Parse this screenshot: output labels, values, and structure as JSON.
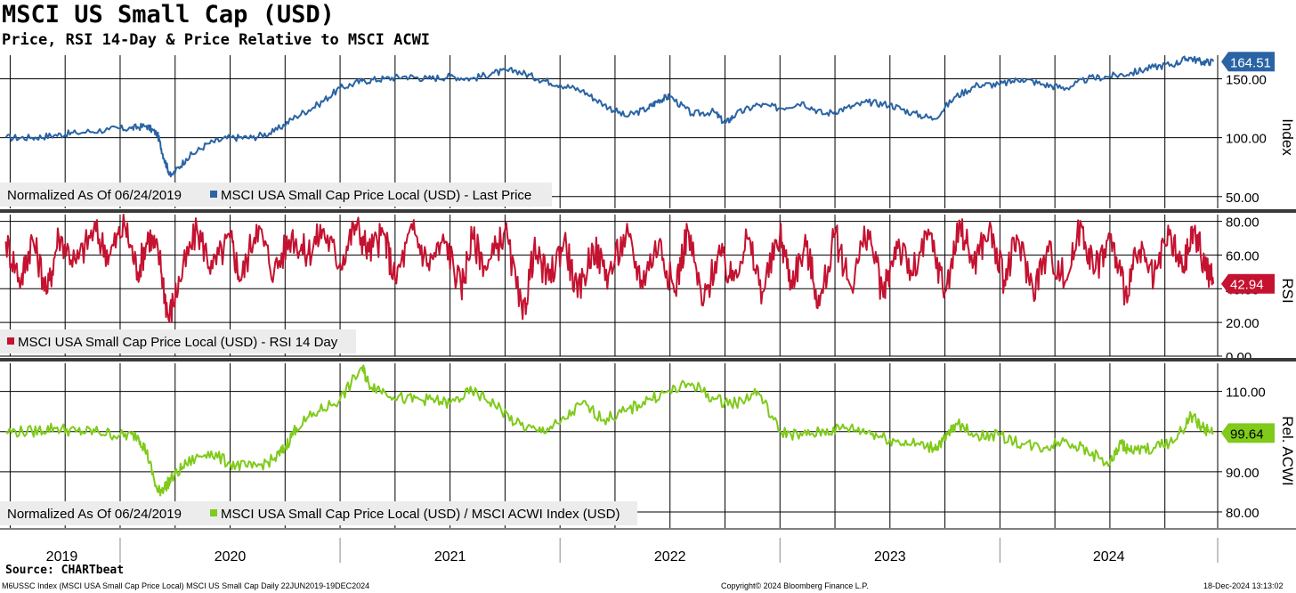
{
  "header": {
    "title": "MSCI US Small Cap (USD)",
    "subtitle": "Price, RSI 14-Day & Price Relative to MSCI ACWI"
  },
  "footer": {
    "source": "Source: CHARTbeat",
    "ticker_info": "M6USSC Index (MSCI USA Small Cap Price Local) MSCI US Small Cap  Daily 22JUN2019-19DEC2024",
    "copyright": "Copyright© 2024 Bloomberg Finance L.P.",
    "timestamp": "18-Dec-2024 13:13:02"
  },
  "colors": {
    "price": "#2a64a4",
    "rsi": "#c41230",
    "rel": "#7fca1a",
    "grid": "#000000"
  },
  "chart_data": [
    {
      "type": "line",
      "panel": "price",
      "axis_label": "Index",
      "ylim": [
        40,
        170
      ],
      "yticks": [
        50,
        100,
        150
      ],
      "ytick_labels": [
        "50.00",
        "100.00",
        "150.00"
      ],
      "legend_prefix": "Normalized As Of 06/24/2019",
      "legend": "MSCI USA Small Cap Price Local (USD) - Last Price",
      "last_label": "164.51",
      "last_value": 164.51,
      "series": [
        {
          "name": "MSCI USA Small Cap Price Local (USD) - Last Price",
          "x": [
            2019.48,
            2019.6,
            2019.7,
            2019.8,
            2019.95,
            2020.05,
            2020.12,
            2020.17,
            2020.2,
            2020.23,
            2020.3,
            2020.4,
            2020.5,
            2020.6,
            2020.7,
            2020.8,
            2020.9,
            2021.0,
            2021.1,
            2021.2,
            2021.3,
            2021.4,
            2021.5,
            2021.6,
            2021.7,
            2021.8,
            2021.9,
            2022.0,
            2022.1,
            2022.2,
            2022.3,
            2022.4,
            2022.45,
            2022.5,
            2022.6,
            2022.7,
            2022.75,
            2022.8,
            2022.9,
            2023.0,
            2023.1,
            2023.2,
            2023.3,
            2023.4,
            2023.5,
            2023.6,
            2023.7,
            2023.8,
            2023.9,
            2024.0,
            2024.1,
            2024.2,
            2024.3,
            2024.4,
            2024.5,
            2024.6,
            2024.7,
            2024.8,
            2024.86,
            2024.92,
            2024.97
          ],
          "values": [
            100,
            100,
            102,
            104,
            107,
            108,
            110,
            103,
            82,
            67,
            82,
            95,
            100,
            100,
            105,
            118,
            128,
            142,
            148,
            150,
            152,
            150,
            152,
            150,
            155,
            157,
            150,
            145,
            140,
            128,
            118,
            125,
            132,
            135,
            120,
            122,
            112,
            120,
            128,
            125,
            130,
            120,
            125,
            130,
            128,
            121,
            116,
            135,
            145,
            145,
            150,
            145,
            142,
            150,
            152,
            155,
            160,
            163,
            168,
            164,
            164.51
          ]
        }
      ]
    },
    {
      "type": "line",
      "panel": "rsi",
      "axis_label": "RSI",
      "ylim": [
        0,
        84
      ],
      "yticks": [
        0,
        20,
        40,
        60,
        80
      ],
      "ytick_labels": [
        "0.00",
        "20.00",
        "40.00",
        "60.00",
        "80.00"
      ],
      "legend": "MSCI USA Small Cap Price Local (USD) - RSI 14 Day",
      "last_label": "42.94",
      "last_value": 42.94,
      "series": [
        {
          "name": "MSCI USA Small Cap Price Local (USD) - RSI 14 Day",
          "x": [
            2019.48,
            2019.55,
            2019.6,
            2019.67,
            2019.72,
            2019.8,
            2019.88,
            2019.95,
            2020.02,
            2020.08,
            2020.13,
            2020.18,
            2020.22,
            2020.27,
            2020.35,
            2020.42,
            2020.5,
            2020.55,
            2020.62,
            2020.7,
            2020.78,
            2020.85,
            2020.92,
            2021.0,
            2021.07,
            2021.13,
            2021.2,
            2021.25,
            2021.33,
            2021.4,
            2021.48,
            2021.55,
            2021.6,
            2021.67,
            2021.75,
            2021.83,
            2021.88,
            2021.95,
            2022.02,
            2022.08,
            2022.15,
            2022.22,
            2022.3,
            2022.37,
            2022.45,
            2022.52,
            2022.58,
            2022.65,
            2022.72,
            2022.78,
            2022.85,
            2022.92,
            2023.0,
            2023.05,
            2023.12,
            2023.18,
            2023.25,
            2023.32,
            2023.4,
            2023.47,
            2023.53,
            2023.6,
            2023.68,
            2023.75,
            2023.82,
            2023.88,
            2023.95,
            2024.02,
            2024.08,
            2024.15,
            2024.22,
            2024.3,
            2024.37,
            2024.43,
            2024.5,
            2024.57,
            2024.63,
            2024.7,
            2024.77,
            2024.83,
            2024.88,
            2024.93,
            2024.97
          ],
          "values": [
            68,
            45,
            70,
            38,
            72,
            55,
            75,
            60,
            78,
            50,
            72,
            58,
            22,
            45,
            75,
            52,
            70,
            45,
            78,
            50,
            72,
            60,
            75,
            55,
            78,
            62,
            72,
            45,
            75,
            55,
            68,
            40,
            70,
            52,
            75,
            22,
            62,
            45,
            70,
            35,
            65,
            48,
            72,
            45,
            68,
            38,
            75,
            30,
            62,
            45,
            70,
            38,
            72,
            45,
            65,
            30,
            72,
            42,
            75,
            35,
            68,
            48,
            72,
            38,
            78,
            55,
            75,
            45,
            70,
            40,
            62,
            45,
            78,
            50,
            70,
            38,
            62,
            45,
            72,
            50,
            75,
            55,
            42.94
          ]
        }
      ]
    },
    {
      "type": "line",
      "panel": "relative",
      "axis_label": "Rel. ACWI",
      "ylim": [
        76,
        117
      ],
      "yticks": [
        80,
        90,
        100,
        110
      ],
      "ytick_labels": [
        "80.00",
        "90.00",
        "100.00",
        "110.00"
      ],
      "legend_prefix": "Normalized As Of 06/24/2019",
      "legend": "MSCI USA Small Cap Price Local (USD) / MSCI ACWI Index (USD)",
      "last_label": "99.64",
      "last_value": 99.64,
      "series": [
        {
          "name": "MSCI USA Small Cap Price Local (USD) / MSCI ACWI Index (USD)",
          "x": [
            2019.48,
            2019.6,
            2019.7,
            2019.8,
            2019.9,
            2020.0,
            2020.08,
            2020.12,
            2020.17,
            2020.2,
            2020.23,
            2020.3,
            2020.4,
            2020.5,
            2020.6,
            2020.7,
            2020.75,
            2020.8,
            2020.9,
            2021.0,
            2021.1,
            2021.13,
            2021.2,
            2021.3,
            2021.4,
            2021.5,
            2021.6,
            2021.7,
            2021.8,
            2021.9,
            2022.0,
            2022.1,
            2022.2,
            2022.3,
            2022.4,
            2022.5,
            2022.6,
            2022.7,
            2022.8,
            2022.9,
            2023.0,
            2023.1,
            2023.2,
            2023.3,
            2023.4,
            2023.5,
            2023.6,
            2023.7,
            2023.75,
            2023.8,
            2023.9,
            2024.0,
            2024.1,
            2024.2,
            2024.3,
            2024.4,
            2024.5,
            2024.55,
            2024.6,
            2024.7,
            2024.8,
            2024.87,
            2024.92,
            2024.97
          ],
          "values": [
            100,
            100,
            101,
            100,
            100,
            99,
            99,
            95,
            85,
            86,
            88,
            92,
            95,
            92,
            91,
            93,
            96,
            101,
            105,
            108,
            116,
            112,
            110,
            108,
            108,
            107,
            110,
            107,
            102,
            100,
            102,
            107,
            103,
            105,
            108,
            110,
            112,
            108,
            107,
            110,
            100,
            99,
            100,
            101,
            100,
            98,
            97,
            96,
            98,
            102,
            99,
            99,
            97,
            96,
            98,
            95,
            92,
            97,
            95,
            96,
            98,
            104,
            101,
            99.64
          ]
        }
      ]
    }
  ],
  "x_axis": {
    "range": [
      2019.47,
      2024.99
    ],
    "year_labels": [
      "2019",
      "2020",
      "2021",
      "2022",
      "2023",
      "2024"
    ]
  }
}
